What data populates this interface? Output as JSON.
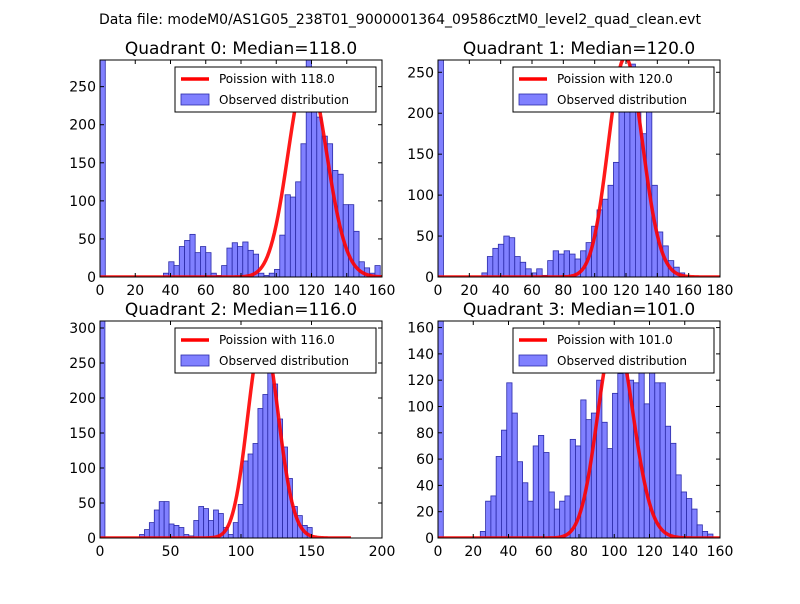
{
  "suptitle": "Data file: modeM0/AS1G05_238T01_9000001364_09586cztM0_level2_quad_clean.evt",
  "chart_data": [
    {
      "type": "bar",
      "title": "Quadrant 0: Median=118.0",
      "xlim": [
        0,
        160
      ],
      "ylim": [
        0,
        285
      ],
      "xticks": [
        0,
        20,
        40,
        60,
        80,
        100,
        120,
        140,
        160
      ],
      "yticks": [
        0,
        50,
        100,
        150,
        200,
        250
      ],
      "bin_width": 3,
      "bins": [
        [
          0,
          285
        ],
        [
          36,
          5
        ],
        [
          39,
          20
        ],
        [
          42,
          15
        ],
        [
          45,
          40
        ],
        [
          48,
          48
        ],
        [
          51,
          56
        ],
        [
          54,
          32
        ],
        [
          57,
          40
        ],
        [
          60,
          32
        ],
        [
          63,
          5
        ],
        [
          66,
          2
        ],
        [
          69,
          15
        ],
        [
          72,
          38
        ],
        [
          75,
          45
        ],
        [
          78,
          40
        ],
        [
          81,
          46
        ],
        [
          84,
          35
        ],
        [
          87,
          30
        ],
        [
          90,
          5
        ],
        [
          93,
          2
        ],
        [
          96,
          5
        ],
        [
          99,
          10
        ],
        [
          102,
          55
        ],
        [
          105,
          108
        ],
        [
          108,
          105
        ],
        [
          111,
          125
        ],
        [
          114,
          175
        ],
        [
          117,
          285
        ],
        [
          120,
          220
        ],
        [
          123,
          210
        ],
        [
          126,
          185
        ],
        [
          129,
          175
        ],
        [
          132,
          140
        ],
        [
          135,
          135
        ],
        [
          138,
          95
        ],
        [
          141,
          95
        ],
        [
          144,
          60
        ],
        [
          147,
          20
        ],
        [
          150,
          12
        ],
        [
          153,
          5
        ],
        [
          156,
          15
        ]
      ],
      "curve_peak": 270,
      "curve_mean": 118,
      "legend": {
        "curve": "Poission with 118.0",
        "bars": "Observed distribution"
      }
    },
    {
      "type": "bar",
      "title": "Quadrant 1: Median=120.0",
      "xlim": [
        0,
        180
      ],
      "ylim": [
        0,
        265
      ],
      "xticks": [
        0,
        20,
        40,
        60,
        80,
        100,
        120,
        140,
        160,
        180
      ],
      "yticks": [
        0,
        50,
        100,
        150,
        200,
        250
      ],
      "bin_width": 3.5,
      "bins": [
        [
          0,
          265
        ],
        [
          28,
          5
        ],
        [
          31.5,
          25
        ],
        [
          35,
          35
        ],
        [
          38.5,
          40
        ],
        [
          42,
          50
        ],
        [
          45.5,
          48
        ],
        [
          49,
          25
        ],
        [
          52.5,
          18
        ],
        [
          56,
          10
        ],
        [
          59.5,
          5
        ],
        [
          63,
          10
        ],
        [
          66.5,
          2
        ],
        [
          70,
          20
        ],
        [
          73.5,
          32
        ],
        [
          77,
          28
        ],
        [
          80.5,
          32
        ],
        [
          84,
          28
        ],
        [
          87.5,
          22
        ],
        [
          91,
          32
        ],
        [
          94.5,
          42
        ],
        [
          98,
          62
        ],
        [
          101.5,
          82
        ],
        [
          105,
          95
        ],
        [
          108.5,
          112
        ],
        [
          112,
          140
        ],
        [
          115.5,
          215
        ],
        [
          119,
          220
        ],
        [
          122.5,
          260
        ],
        [
          126,
          210
        ],
        [
          129.5,
          175
        ],
        [
          133,
          205
        ],
        [
          136.5,
          112
        ],
        [
          140,
          55
        ],
        [
          143.5,
          38
        ],
        [
          147,
          20
        ],
        [
          150.5,
          12
        ],
        [
          154,
          5
        ]
      ],
      "curve_peak": 268,
      "curve_mean": 120,
      "legend": {
        "curve": "Poission with 120.0",
        "bars": "Observed distribution"
      }
    },
    {
      "type": "bar",
      "title": "Quadrant 2: Median=116.0",
      "xlim": [
        0,
        200
      ],
      "ylim": [
        0,
        310
      ],
      "xticks": [
        0,
        50,
        100,
        150,
        200
      ],
      "yticks": [
        0,
        50,
        100,
        150,
        200,
        250,
        300
      ],
      "bin_width": 3.5,
      "bins": [
        [
          0,
          310
        ],
        [
          28,
          5
        ],
        [
          31.5,
          12
        ],
        [
          35,
          22
        ],
        [
          38.5,
          40
        ],
        [
          42,
          52
        ],
        [
          45.5,
          52
        ],
        [
          49,
          20
        ],
        [
          52.5,
          18
        ],
        [
          56,
          15
        ],
        [
          59.5,
          5
        ],
        [
          63,
          3
        ],
        [
          66.5,
          25
        ],
        [
          70,
          45
        ],
        [
          73.5,
          42
        ],
        [
          77,
          25
        ],
        [
          80.5,
          40
        ],
        [
          84,
          35
        ],
        [
          87.5,
          15
        ],
        [
          91,
          5
        ],
        [
          94.5,
          22
        ],
        [
          98,
          48
        ],
        [
          101.5,
          110
        ],
        [
          105,
          120
        ],
        [
          108.5,
          135
        ],
        [
          112,
          185
        ],
        [
          115.5,
          205
        ],
        [
          119,
          245
        ],
        [
          122.5,
          220
        ],
        [
          126,
          170
        ],
        [
          129.5,
          130
        ],
        [
          133,
          85
        ],
        [
          136.5,
          45
        ],
        [
          140,
          32
        ],
        [
          143.5,
          18
        ],
        [
          147,
          15
        ]
      ],
      "curve_peak": 290,
      "curve_mean": 116,
      "legend": {
        "curve": "Poission with 116.0",
        "bars": "Observed distribution"
      }
    },
    {
      "type": "bar",
      "title": "Quadrant 3: Median=101.0",
      "xlim": [
        0,
        160
      ],
      "ylim": [
        0,
        165
      ],
      "xticks": [
        0,
        20,
        40,
        60,
        80,
        100,
        120,
        140,
        160
      ],
      "yticks": [
        0,
        20,
        40,
        60,
        80,
        100,
        120,
        140,
        160
      ],
      "bin_width": 3,
      "bins": [
        [
          0,
          165
        ],
        [
          24,
          5
        ],
        [
          27,
          28
        ],
        [
          30,
          32
        ],
        [
          33,
          62
        ],
        [
          36,
          82
        ],
        [
          39,
          118
        ],
        [
          42,
          95
        ],
        [
          45,
          58
        ],
        [
          48,
          42
        ],
        [
          51,
          28
        ],
        [
          54,
          70
        ],
        [
          57,
          78
        ],
        [
          60,
          65
        ],
        [
          63,
          35
        ],
        [
          66,
          22
        ],
        [
          69,
          28
        ],
        [
          72,
          32
        ],
        [
          75,
          75
        ],
        [
          78,
          70
        ],
        [
          81,
          105
        ],
        [
          84,
          90
        ],
        [
          87,
          95
        ],
        [
          90,
          120
        ],
        [
          93,
          88
        ],
        [
          96,
          68
        ],
        [
          99,
          110
        ],
        [
          102,
          125
        ],
        [
          105,
          152
        ],
        [
          108,
          120
        ],
        [
          111,
          118
        ],
        [
          114,
          155
        ],
        [
          117,
          102
        ],
        [
          120,
          140
        ],
        [
          123,
          118
        ],
        [
          126,
          118
        ],
        [
          129,
          85
        ],
        [
          132,
          72
        ],
        [
          135,
          48
        ],
        [
          138,
          35
        ],
        [
          141,
          30
        ],
        [
          144,
          22
        ],
        [
          147,
          10
        ],
        [
          150,
          5
        ],
        [
          153,
          3
        ]
      ],
      "curve_peak": 155,
      "curve_mean": 101,
      "legend": {
        "curve": "Poission with 101.0",
        "bars": "Observed distribution"
      }
    }
  ],
  "colors": {
    "bar_fill": "#8080ff",
    "bar_edge": "#2a2aa8",
    "curve": "#ff0000"
  }
}
